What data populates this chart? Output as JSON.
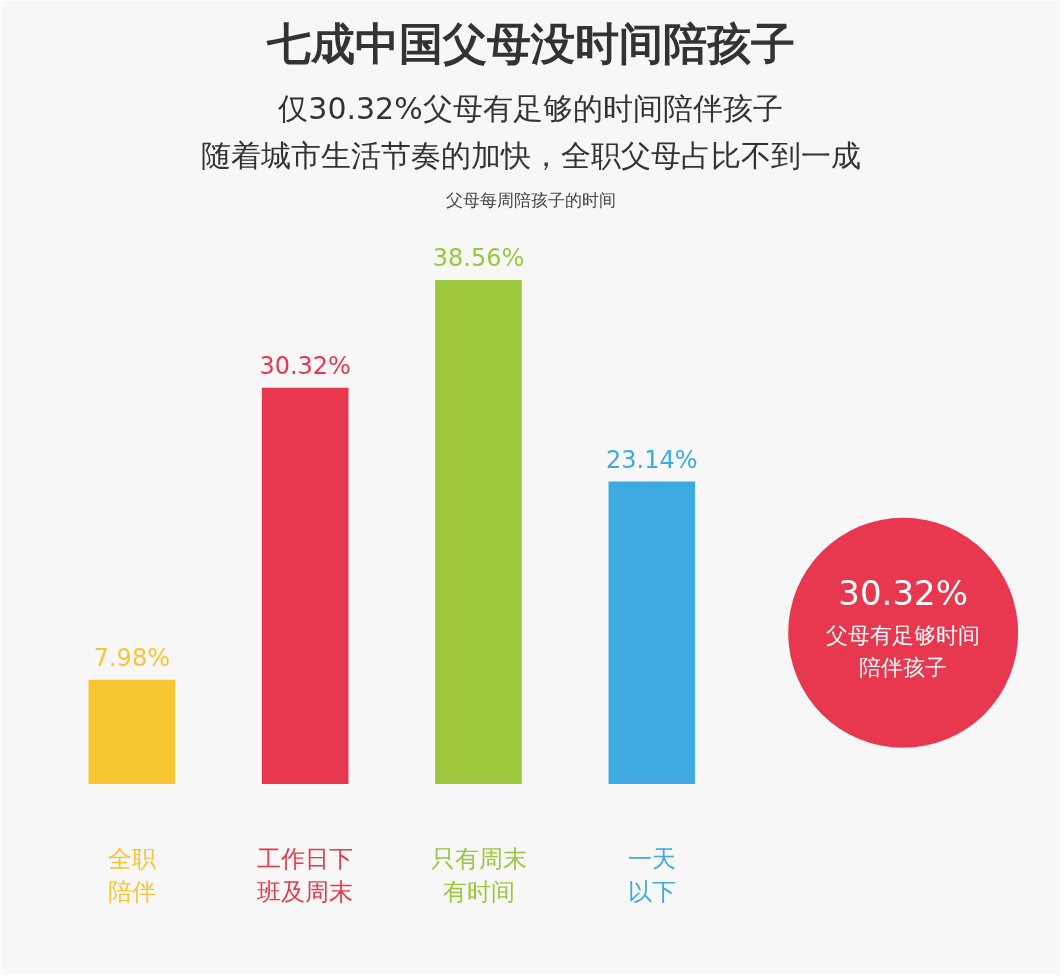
{
  "chart_data": {
    "type": "bar",
    "title": "七成中国父母没时间陪孩子",
    "subtitle": "仅30.32%父母有足够的时间陪伴孩子",
    "categories": [
      "全职陪伴",
      "工作日下班及周末",
      "只有周末有时间",
      "一天以下"
    ],
    "values": [
      7.98,
      30.32,
      38.56,
      23.14
    ],
    "colors": [
      "#f7c531",
      "#e8384f",
      "#9cc63c",
      "#3fa9e1"
    ],
    "value_labels": [
      "7.98%",
      "30.32%",
      "38.56%",
      "23.14%"
    ],
    "annotations": [
      "随着城市生活节奏的加快，全职父母占比不到一成",
      "父母每周陪孩子的时间",
      "30.32%",
      "父母有足够时间陪伴孩子"
    ]
  }
}
